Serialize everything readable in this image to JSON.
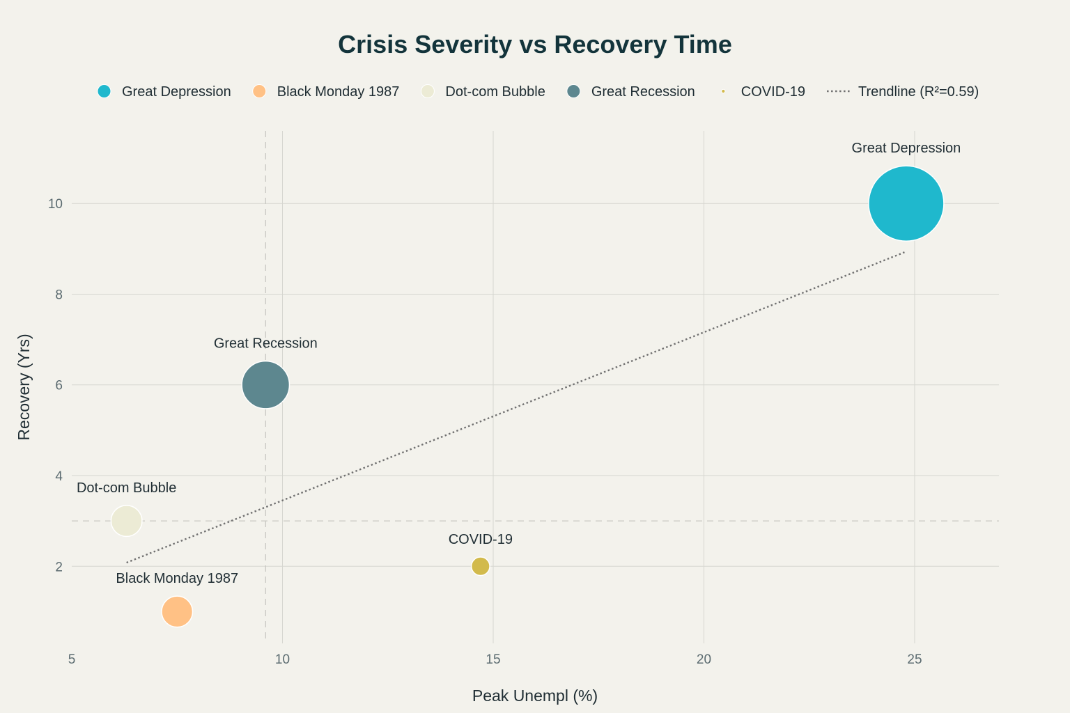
{
  "chart_data": {
    "type": "scatter",
    "title": "Crisis Severity vs Recovery Time",
    "xlabel": "Peak Unempl (%)",
    "ylabel": "Recovery (Yrs)",
    "xlim": [
      5,
      27
    ],
    "ylim": [
      0.3,
      11.6
    ],
    "xticks": [
      5,
      10,
      15,
      20,
      25
    ],
    "yticks": [
      2,
      4,
      6,
      8,
      10
    ],
    "grid": true,
    "legend_position": "top",
    "series": [
      {
        "name": "Great Depression",
        "x": 24.8,
        "y": 10,
        "size": 100,
        "color": "#1fb8cd"
      },
      {
        "name": "Black Monday 1987",
        "x": 7.5,
        "y": 1,
        "size": 17,
        "color": "#ffc185"
      },
      {
        "name": "Dot-com Bubble",
        "x": 6.3,
        "y": 3,
        "size": 17,
        "color": "#ecebd5"
      },
      {
        "name": "Great Recession",
        "x": 9.6,
        "y": 6,
        "size": 40,
        "color": "#5d878f"
      },
      {
        "name": "COVID-19",
        "x": 14.7,
        "y": 2,
        "size": 6,
        "color": "#d2ba4c"
      }
    ],
    "trendline": {
      "name": "Trendline (R²=0.59)",
      "x": [
        6.3,
        24.8
      ],
      "y": [
        2.08,
        8.94
      ],
      "color": "#707070"
    },
    "reference_lines": [
      {
        "axis": "x",
        "value": 9.6
      },
      {
        "axis": "y",
        "value": 3
      }
    ]
  }
}
